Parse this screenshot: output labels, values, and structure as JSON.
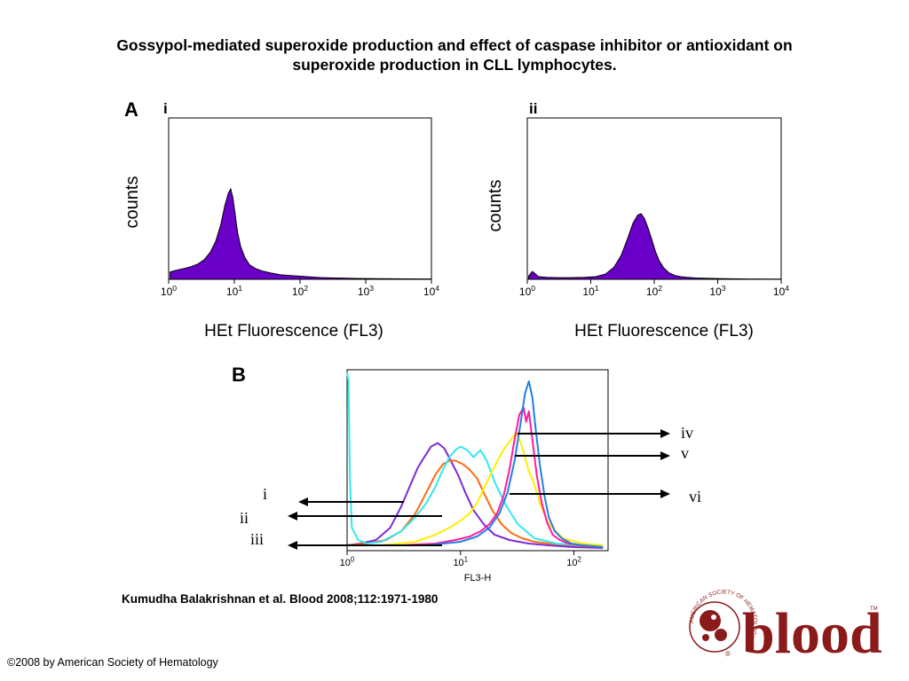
{
  "slide": {
    "title_line1": "Gossypol-mediated superoxide production and effect of caspase inhibitor or antioxidant on",
    "title_line2": "superoxide production in CLL lymphocytes.",
    "citation": "Kumudha Balakrishnan et al. Blood 2008;112:1971-1980",
    "copyright": "©2008 by American Society of Hematology",
    "logo": {
      "text": "blood",
      "ring_text": "AMERICAN SOCIETY OF HEMATOLOGY",
      "tm": "TM",
      "reg": "®",
      "color": "#8b1a1a"
    }
  },
  "panel_labels": {
    "A": "A",
    "B": "B"
  },
  "chart_data": [
    {
      "type": "area",
      "panel": "A",
      "sublabel": "i",
      "ylabel": "counts",
      "xlabel": "HEt Fluorescence (FL3)",
      "x_scale": "log",
      "xlim": [
        1,
        10000
      ],
      "x_ticks": [
        {
          "base": "10",
          "exp": "0"
        },
        {
          "base": "10",
          "exp": "1"
        },
        {
          "base": "10",
          "exp": "2"
        },
        {
          "base": "10",
          "exp": "3"
        },
        {
          "base": "10",
          "exp": "4"
        }
      ],
      "fill_color": "#6a00c8",
      "series": [
        {
          "x": [
            1.05,
            1.3,
            1.7,
            2.2,
            2.8,
            3.5,
            4.3,
            5.2,
            6.2,
            7.2,
            8.1,
            8.8,
            9.5,
            10.3,
            11.2,
            12.5,
            14.5,
            17,
            21,
            27,
            36,
            50,
            75,
            120,
            200,
            350,
            700,
            1500,
            4000,
            9800
          ],
          "y": [
            0.08,
            0.1,
            0.12,
            0.14,
            0.17,
            0.22,
            0.3,
            0.42,
            0.6,
            0.82,
            0.95,
            1.0,
            0.9,
            0.72,
            0.52,
            0.36,
            0.24,
            0.16,
            0.12,
            0.09,
            0.07,
            0.05,
            0.04,
            0.03,
            0.02,
            0.015,
            0.01,
            0.008,
            0.005,
            0.004
          ]
        }
      ]
    },
    {
      "type": "area",
      "panel": "A",
      "sublabel": "ii",
      "ylabel": "counts",
      "xlabel": "HEt Fluorescence (FL3)",
      "x_scale": "log",
      "xlim": [
        1,
        10000
      ],
      "x_ticks": [
        {
          "base": "10",
          "exp": "0"
        },
        {
          "base": "10",
          "exp": "1"
        },
        {
          "base": "10",
          "exp": "2"
        },
        {
          "base": "10",
          "exp": "3"
        },
        {
          "base": "10",
          "exp": "4"
        }
      ],
      "fill_color": "#6a00c8",
      "series": [
        {
          "x": [
            1.05,
            1.2,
            1.5,
            2.0,
            3.0,
            5.0,
            8.0,
            12,
            17,
            23,
            30,
            38,
            46,
            55,
            62,
            70,
            80,
            92,
            105,
            120,
            140,
            170,
            210,
            260,
            330,
            450,
            700,
            1200,
            3000,
            9800
          ],
          "y": [
            0.05,
            0.12,
            0.04,
            0.03,
            0.025,
            0.025,
            0.03,
            0.04,
            0.08,
            0.18,
            0.36,
            0.62,
            0.85,
            0.98,
            1.0,
            0.93,
            0.78,
            0.6,
            0.42,
            0.28,
            0.18,
            0.1,
            0.06,
            0.04,
            0.03,
            0.02,
            0.015,
            0.01,
            0.006,
            0.004
          ]
        }
      ]
    },
    {
      "type": "line",
      "panel": "B",
      "xlabel": "FL3-H",
      "x_scale": "log",
      "xlim": [
        1,
        200
      ],
      "x_ticks": [
        {
          "base": "10",
          "exp": "0"
        },
        {
          "base": "10",
          "exp": "1"
        },
        {
          "base": "10",
          "exp": "2"
        }
      ],
      "annotations_left": [
        "i",
        "ii",
        "iii"
      ],
      "annotations_right": [
        "iv",
        "v",
        "vi"
      ],
      "series": [
        {
          "color": "#7a2bd6",
          "x": [
            1.0,
            1.3,
            1.8,
            2.4,
            3.0,
            3.6,
            4.2,
            4.8,
            5.5,
            6.3,
            7.2,
            8.2,
            9.5,
            11,
            13,
            16,
            20,
            27,
            40,
            60,
            100,
            180
          ],
          "y": [
            0.02,
            0.03,
            0.05,
            0.12,
            0.24,
            0.36,
            0.46,
            0.52,
            0.58,
            0.6,
            0.57,
            0.5,
            0.42,
            0.32,
            0.22,
            0.14,
            0.08,
            0.05,
            0.03,
            0.02,
            0.01,
            0.005
          ]
        },
        {
          "color": "#ff6a10",
          "x": [
            1.0,
            1.5,
            2.2,
            3.0,
            4.0,
            5.0,
            6.0,
            7.0,
            8.0,
            9.0,
            10.5,
            12,
            14,
            16,
            19,
            23,
            28,
            35,
            45,
            60,
            100,
            180
          ],
          "y": [
            0.02,
            0.03,
            0.05,
            0.1,
            0.2,
            0.32,
            0.42,
            0.48,
            0.5,
            0.5,
            0.48,
            0.45,
            0.4,
            0.32,
            0.22,
            0.14,
            0.09,
            0.06,
            0.04,
            0.03,
            0.02,
            0.01
          ]
        },
        {
          "color": "#30e8f0",
          "x": [
            1.0,
            1.03,
            1.06,
            1.1,
            1.25,
            1.5,
            2.0,
            3.0,
            4.0,
            5.0,
            6.0,
            7.0,
            8.0,
            9.0,
            10,
            11.5,
            13,
            15,
            17,
            20,
            25,
            32,
            45,
            70,
            120,
            180
          ],
          "y": [
            1.0,
            0.95,
            0.4,
            0.12,
            0.05,
            0.03,
            0.04,
            0.1,
            0.18,
            0.26,
            0.35,
            0.45,
            0.52,
            0.56,
            0.58,
            0.56,
            0.52,
            0.56,
            0.5,
            0.38,
            0.25,
            0.14,
            0.06,
            0.03,
            0.02,
            0.01
          ]
        },
        {
          "color": "#ffee00",
          "x": [
            1.0,
            2.0,
            4.0,
            6.0,
            8.0,
            10,
            12,
            14,
            16,
            19,
            22,
            25,
            28,
            31,
            34,
            37,
            40,
            44,
            50,
            60,
            80,
            120,
            180
          ],
          "y": [
            0.02,
            0.02,
            0.04,
            0.08,
            0.12,
            0.16,
            0.2,
            0.26,
            0.34,
            0.44,
            0.52,
            0.58,
            0.62,
            0.66,
            0.6,
            0.52,
            0.44,
            0.38,
            0.26,
            0.14,
            0.06,
            0.03,
            0.02
          ]
        },
        {
          "color": "#ff1aa0",
          "x": [
            1.0,
            3.0,
            6.0,
            9.0,
            12,
            15,
            18,
            21,
            24,
            27,
            30,
            33,
            36,
            38,
            40,
            43,
            47,
            52,
            58,
            65,
            75,
            90,
            120,
            180
          ],
          "y": [
            0.02,
            0.02,
            0.03,
            0.05,
            0.07,
            0.1,
            0.14,
            0.2,
            0.3,
            0.45,
            0.62,
            0.76,
            0.8,
            0.72,
            0.78,
            0.62,
            0.42,
            0.26,
            0.15,
            0.08,
            0.05,
            0.03,
            0.02,
            0.01
          ]
        },
        {
          "color": "#2080e0",
          "x": [
            1.0,
            5.0,
            10,
            14,
            18,
            22,
            26,
            30,
            34,
            37,
            40,
            43,
            46,
            50,
            55,
            60,
            68,
            78,
            95,
            120,
            180
          ],
          "y": [
            0.02,
            0.02,
            0.04,
            0.07,
            0.12,
            0.2,
            0.32,
            0.5,
            0.72,
            0.88,
            0.95,
            0.86,
            0.68,
            0.48,
            0.3,
            0.18,
            0.1,
            0.06,
            0.03,
            0.02,
            0.01
          ]
        }
      ]
    }
  ]
}
